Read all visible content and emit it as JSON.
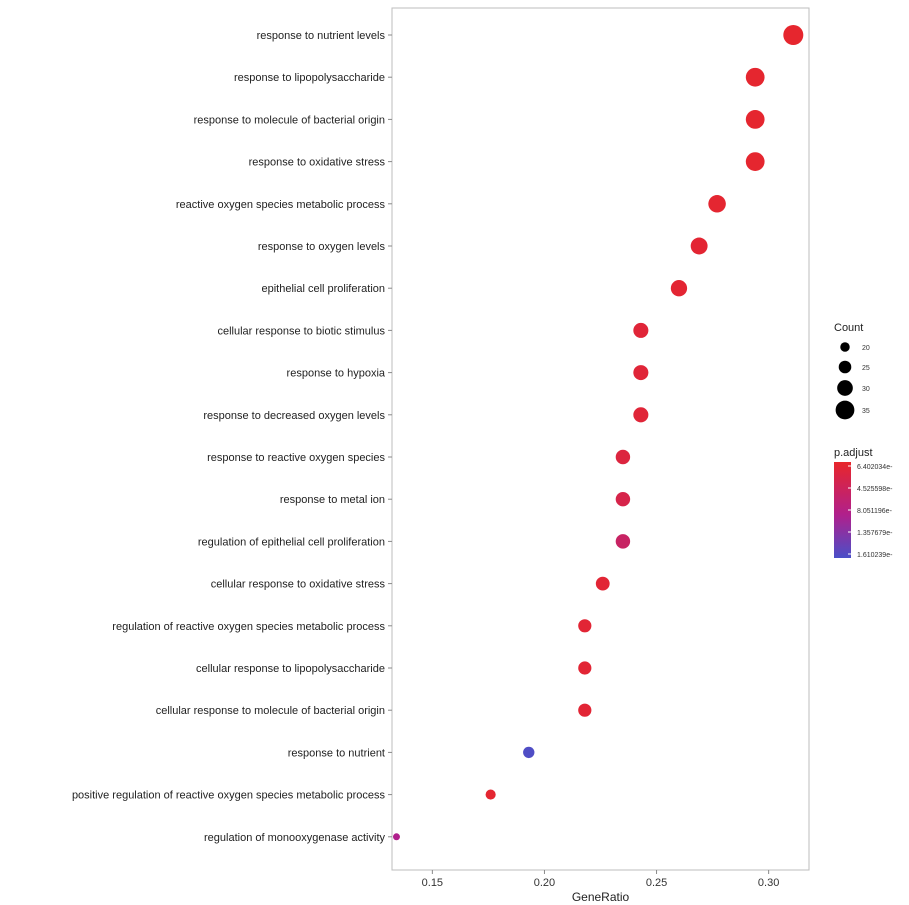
{
  "chart_data": {
    "type": "scatter",
    "xlabel": "GeneRatio",
    "xlim": [
      0.132,
      0.318
    ],
    "xticks": [
      "0.15",
      "0.20",
      "0.25",
      "0.30"
    ],
    "xtick_values": [
      0.15,
      0.2,
      0.25,
      0.3
    ],
    "categories": [
      "response to nutrient levels",
      "response to lipopolysaccharide",
      "response to molecule of bacterial origin",
      "response to oxidative stress",
      "reactive oxygen species metabolic process",
      "response to oxygen levels",
      "epithelial cell proliferation",
      "cellular response to biotic stimulus",
      "response to hypoxia",
      "response to decreased oxygen levels",
      "response to reactive oxygen species",
      "response to metal ion",
      "regulation of epithelial cell proliferation",
      "cellular response to oxidative stress",
      "regulation of reactive oxygen species metabolic process",
      "cellular response to lipopolysaccharide",
      "cellular response to molecule of bacterial origin",
      "response to nutrient",
      "positive regulation of reactive oxygen species metabolic process",
      "regulation of monooxygenase activity"
    ],
    "gene_ratio": [
      0.311,
      0.294,
      0.294,
      0.294,
      0.277,
      0.269,
      0.26,
      0.243,
      0.243,
      0.243,
      0.235,
      0.235,
      0.235,
      0.226,
      0.218,
      0.218,
      0.218,
      0.193,
      0.176,
      0.134
    ],
    "count": [
      37,
      35,
      35,
      35,
      33,
      32,
      31,
      29,
      29,
      29,
      28,
      28,
      28,
      27,
      26,
      26,
      26,
      23,
      21,
      16
    ],
    "color_t": [
      0.02,
      0.03,
      0.03,
      0.03,
      0.04,
      0.05,
      0.05,
      0.08,
      0.08,
      0.08,
      0.12,
      0.18,
      0.32,
      0.06,
      0.06,
      0.06,
      0.06,
      0.98,
      0.04,
      0.55
    ],
    "legend_count": {
      "title": "Count",
      "labels": [
        "20",
        "25",
        "30",
        "35"
      ],
      "values": [
        20,
        25,
        30,
        35
      ]
    },
    "legend_padj": {
      "title": "p.adjust",
      "labels": [
        "6.402034e-",
        "4.525598e-",
        "8.051196e-",
        "1.357679e-",
        "1.610239e-"
      ],
      "colors": {
        "low": "#e8262a",
        "mid": "#b0208c",
        "high": "#4a4fc8"
      }
    },
    "grid": false,
    "legend": "right"
  }
}
